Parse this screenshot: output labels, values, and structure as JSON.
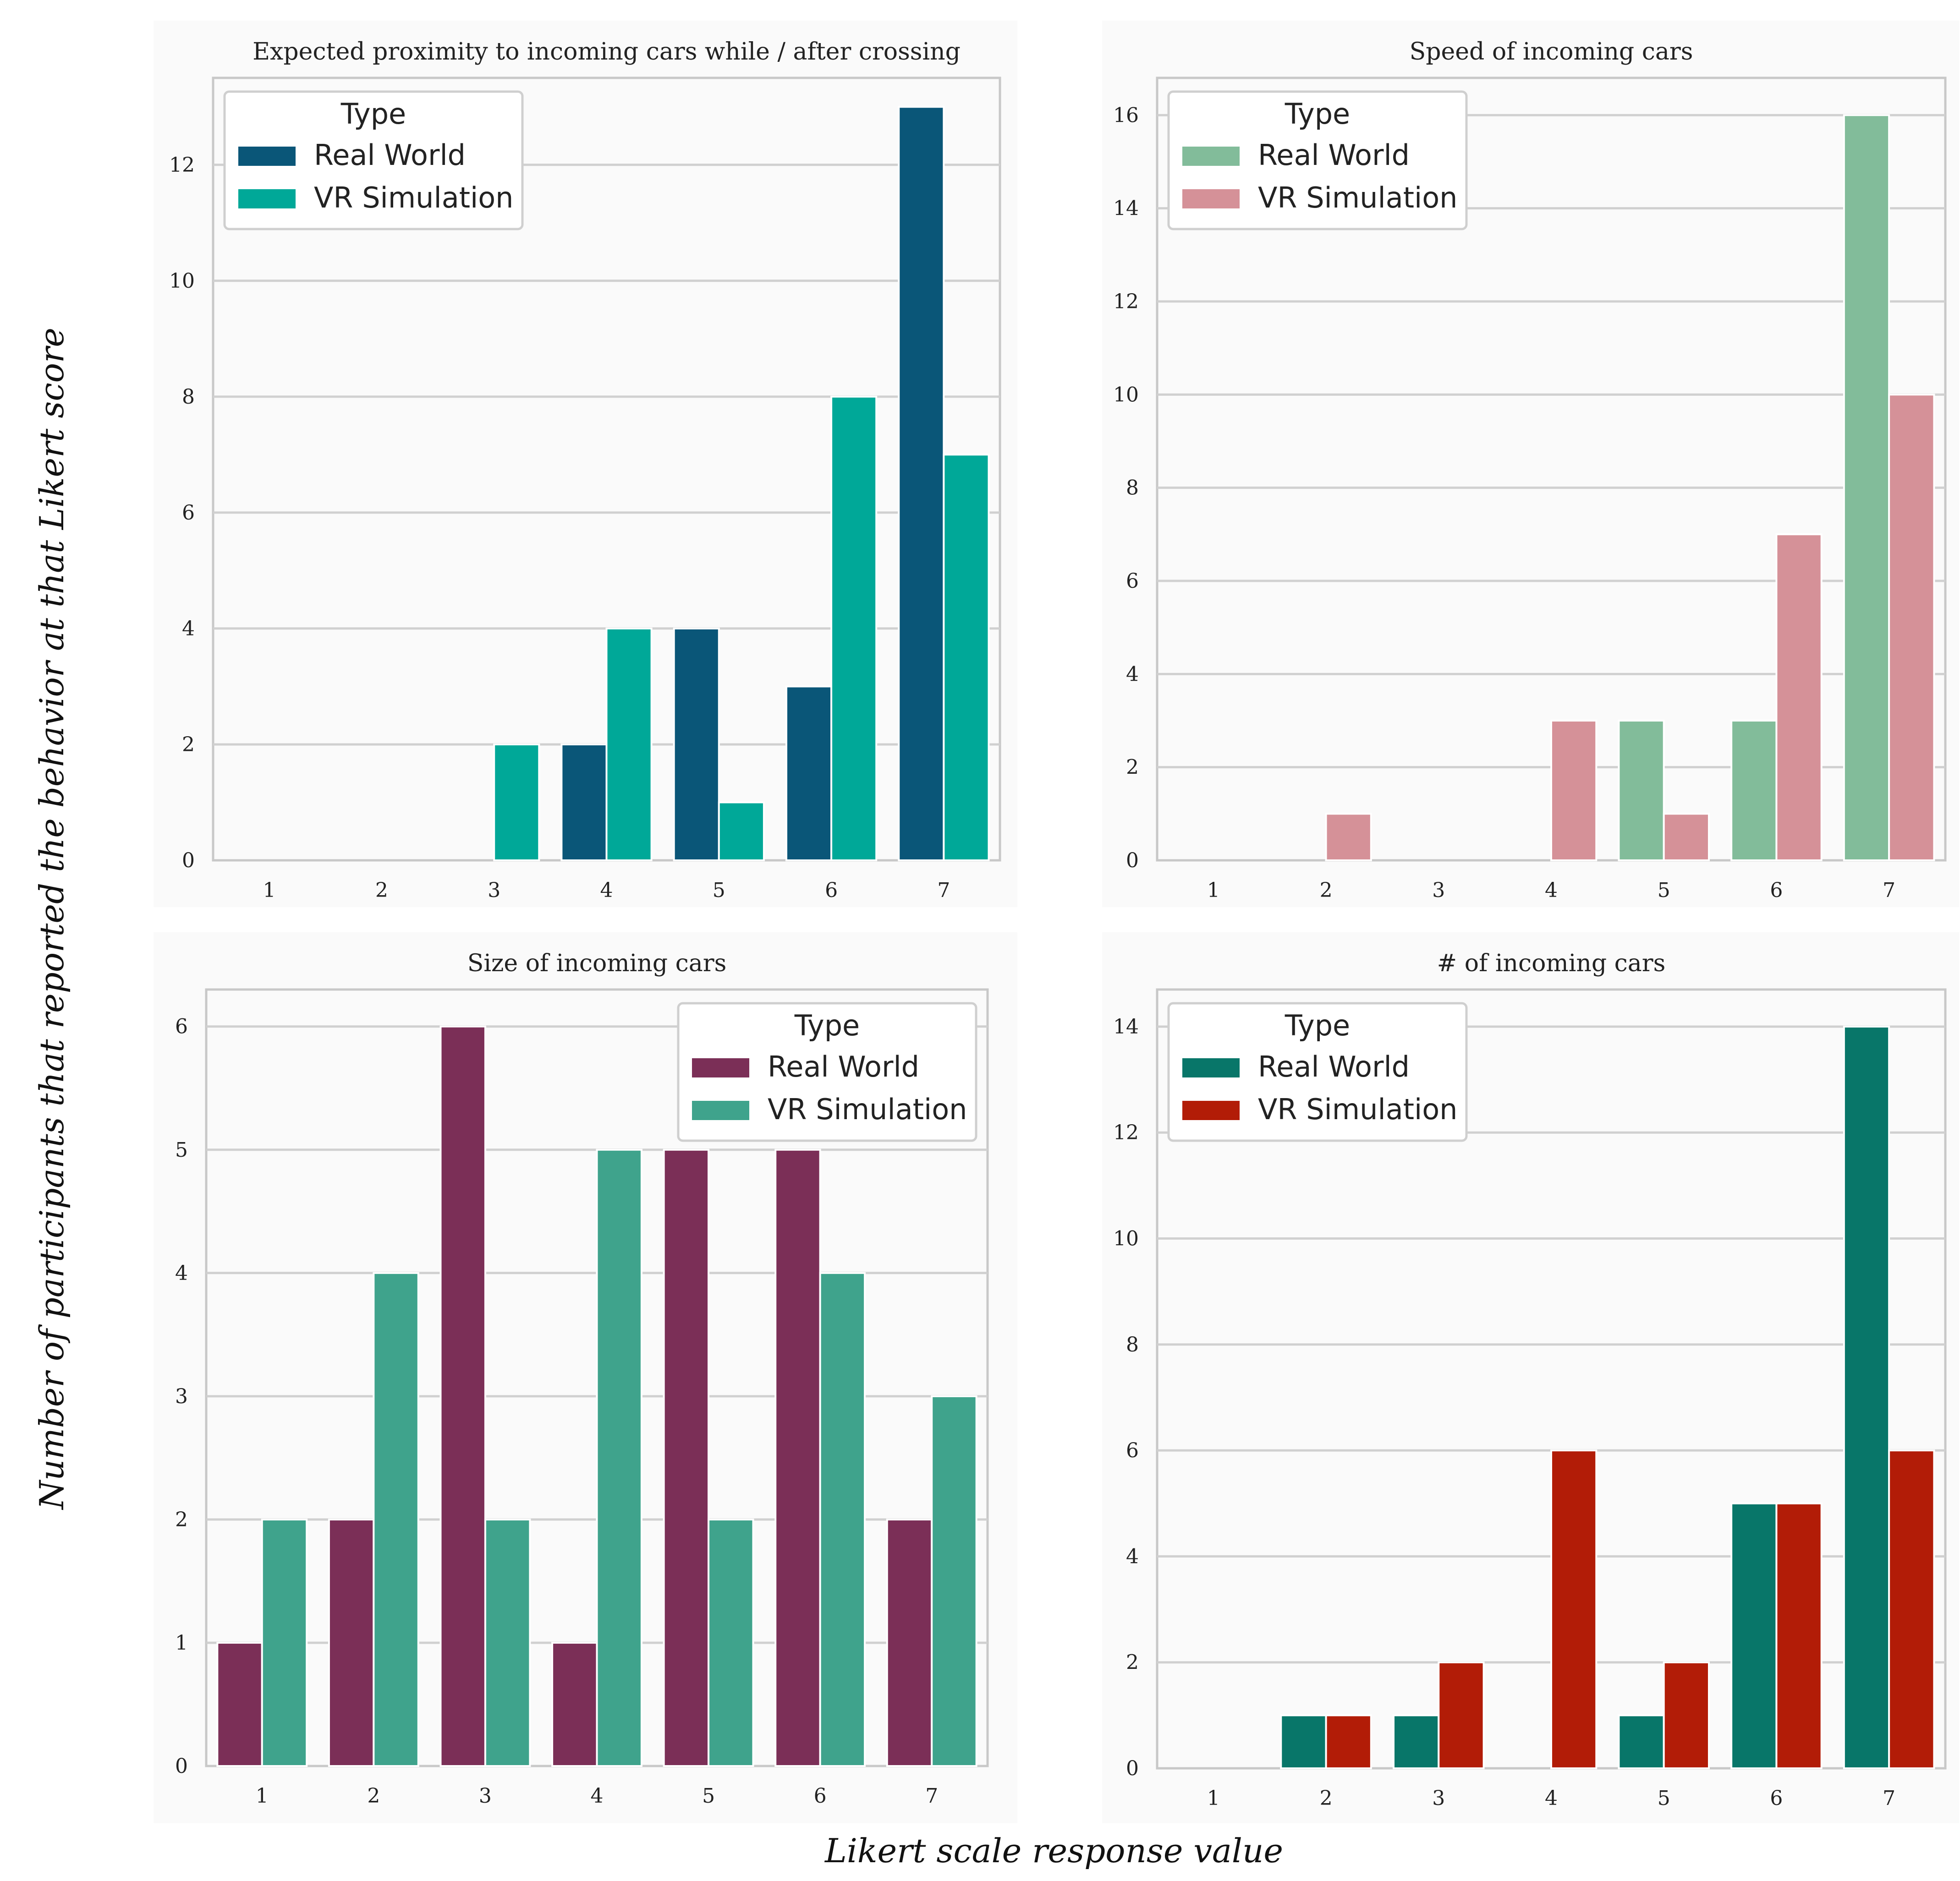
{
  "figure": {
    "ylabel": "Number of participants that reported the behavior at that Likert score",
    "xlabel": "Likert scale response value"
  },
  "chart_data": [
    {
      "type": "bar",
      "title": "Expected proximity to incoming cars while / after crossing",
      "categories": [
        "1",
        "2",
        "3",
        "4",
        "5",
        "6",
        "7"
      ],
      "legend_title": "Type",
      "legend_position": "top-left",
      "ylim": [
        0,
        13.5
      ],
      "yticks": [
        0,
        2,
        4,
        6,
        8,
        10,
        12
      ],
      "series": [
        {
          "name": "Real World",
          "color": "#0a5678",
          "values": [
            0,
            0,
            0,
            2,
            4,
            3,
            13
          ]
        },
        {
          "name": "VR Simulation",
          "color": "#00a898",
          "values": [
            0,
            0,
            2,
            4,
            1,
            8,
            7
          ]
        }
      ]
    },
    {
      "type": "bar",
      "title": "Speed of incoming cars",
      "categories": [
        "1",
        "2",
        "3",
        "4",
        "5",
        "6",
        "7"
      ],
      "legend_title": "Type",
      "legend_position": "top-left",
      "ylim": [
        0,
        16.8
      ],
      "yticks": [
        0,
        2,
        4,
        6,
        8,
        10,
        12,
        14,
        16
      ],
      "series": [
        {
          "name": "Real World",
          "color": "#82bc9a",
          "values": [
            0,
            0,
            0,
            0,
            3,
            3,
            16
          ]
        },
        {
          "name": "VR Simulation",
          "color": "#d59198",
          "values": [
            0,
            1,
            0,
            3,
            1,
            7,
            10
          ]
        }
      ]
    },
    {
      "type": "bar",
      "title": "Size of incoming cars",
      "categories": [
        "1",
        "2",
        "3",
        "4",
        "5",
        "6",
        "7"
      ],
      "legend_title": "Type",
      "legend_position": "top-right",
      "ylim": [
        0,
        6.3
      ],
      "yticks": [
        0,
        1,
        2,
        3,
        4,
        5,
        6
      ],
      "series": [
        {
          "name": "Real World",
          "color": "#7b2f57",
          "values": [
            1,
            2,
            6,
            1,
            5,
            5,
            2
          ]
        },
        {
          "name": "VR Simulation",
          "color": "#3fa38c",
          "values": [
            2,
            4,
            2,
            5,
            2,
            4,
            3
          ]
        }
      ]
    },
    {
      "type": "bar",
      "title": "# of incoming cars",
      "categories": [
        "1",
        "2",
        "3",
        "4",
        "5",
        "6",
        "7"
      ],
      "legend_title": "Type",
      "legend_position": "top-left",
      "ylim": [
        0,
        14.7
      ],
      "yticks": [
        0,
        2,
        4,
        6,
        8,
        10,
        12,
        14
      ],
      "series": [
        {
          "name": "Real World",
          "color": "#087669",
          "values": [
            0,
            1,
            1,
            0,
            1,
            5,
            14
          ]
        },
        {
          "name": "VR Simulation",
          "color": "#b21c07",
          "values": [
            0,
            1,
            2,
            6,
            2,
            5,
            6
          ]
        }
      ]
    }
  ]
}
